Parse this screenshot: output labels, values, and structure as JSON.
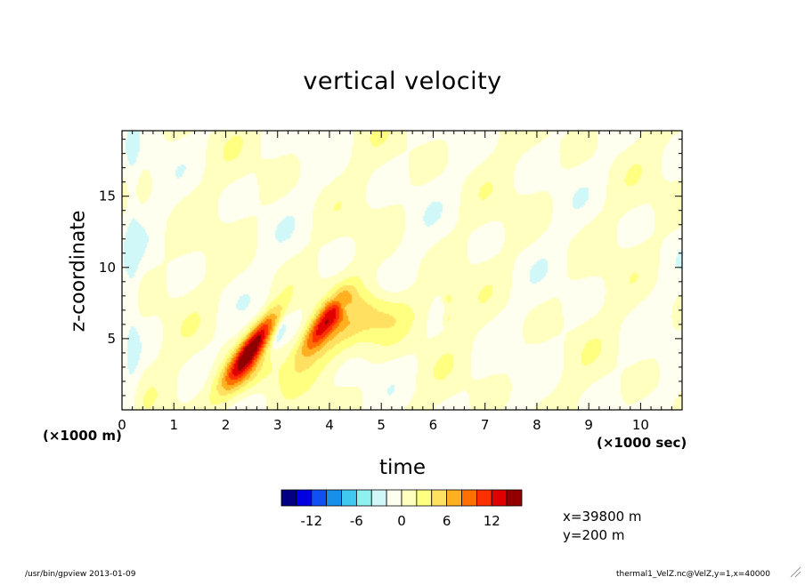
{
  "chart_data": {
    "type": "heatmap",
    "title": "vertical velocity",
    "xlabel": "time",
    "ylabel": "z-coordinate",
    "x_unit": "(×1000 sec)",
    "y_unit": "(×1000 m)",
    "xlim": [
      0,
      10.8
    ],
    "ylim": [
      0,
      19.6
    ],
    "x_ticks": [
      0,
      1,
      2,
      3,
      4,
      5,
      6,
      7,
      8,
      9,
      10
    ],
    "y_ticks": [
      5,
      10,
      15
    ],
    "grid": false,
    "colorbar": {
      "levels": [
        -16,
        -14,
        -12,
        -10,
        -8,
        -6,
        -4,
        -2,
        0,
        2,
        4,
        6,
        8,
        10,
        12,
        14,
        16
      ],
      "tick_labels": [
        "-12",
        "-6",
        "0",
        "6",
        "12"
      ],
      "tick_values": [
        -12,
        -6,
        0,
        6,
        12
      ],
      "colors": [
        "#000080",
        "#0000e0",
        "#1050f0",
        "#1890e8",
        "#40c8f0",
        "#90f0f0",
        "#d0f8f8",
        "#fffff0",
        "#ffffc0",
        "#ffff80",
        "#ffe060",
        "#ffb020",
        "#ff7000",
        "#ff3000",
        "#e00000",
        "#900000"
      ]
    },
    "features": [
      {
        "kind": "updraft-core",
        "t": 2.55,
        "z": 4.6,
        "peak": 14
      },
      {
        "kind": "updraft",
        "t": 3.9,
        "z": 6.0,
        "peak": 9
      },
      {
        "kind": "updraft-weak",
        "t": 5.0,
        "z": 6.7,
        "peak": 4
      },
      {
        "kind": "updraft-weak",
        "t": 6.3,
        "z": 7.8,
        "peak": 3
      },
      {
        "kind": "downdraft-weak",
        "t": 3.05,
        "z": 5.4,
        "peak": -2
      }
    ]
  },
  "annotations": {
    "x_position": "x=39800 m",
    "y_position": "y=200 m"
  },
  "footer": {
    "left": "/usr/bin/gpview  2013-01-09",
    "right": "thermal1_VelZ.nc@VelZ,y=1,x=40000"
  }
}
